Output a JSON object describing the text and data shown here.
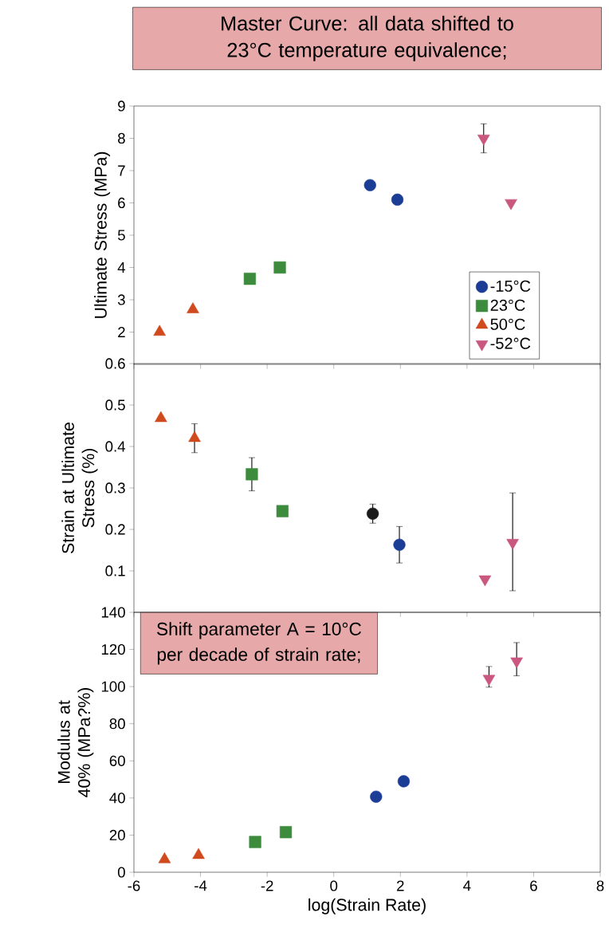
{
  "chart_data": [
    {
      "type": "scatter",
      "title": "Master Curve: all data shifted to 23°C temperature equivalence;",
      "ylabel": "Ultimate Stress (MPa)",
      "xlim": [
        -6,
        8
      ],
      "xticks": [
        -6,
        -4,
        -2,
        0,
        2,
        4,
        6,
        8
      ],
      "ylim": [
        1,
        9
      ],
      "yticks": [
        2,
        3,
        4,
        5,
        6,
        7,
        8,
        9
      ],
      "tick_labels": "y",
      "legend": "bottom right",
      "series": [
        {
          "name": "-15°C",
          "color": "#1c3d96",
          "marker": "circle",
          "x": [
            1.09,
            1.91
          ],
          "values": [
            6.55,
            6.1
          ]
        },
        {
          "name": "23°C",
          "color": "#3d8b3d",
          "marker": "square",
          "x": [
            -2.52,
            -1.62
          ],
          "values": [
            3.65,
            4.0
          ]
        },
        {
          "name": "50°C",
          "color": "#d04a1e",
          "marker": "triangle",
          "x": [
            -5.23,
            -4.23
          ],
          "values": [
            2.0,
            2.7
          ]
        },
        {
          "name": "-52°C",
          "color": "#c9577f",
          "marker": "triangle-down",
          "x": [
            4.5,
            5.32
          ],
          "values": [
            8.0,
            6.0
          ],
          "errors": [
            0.45,
            null
          ]
        }
      ]
    },
    {
      "type": "scatter",
      "ylabel": "Strain at Ultimate Stress (%)",
      "xlim": [
        -6,
        8
      ],
      "xticks": [
        -6,
        -4,
        -2,
        0,
        2,
        4,
        6,
        8
      ],
      "ylim": [
        0,
        0.6
      ],
      "yticks": [
        0.1,
        0.2,
        0.3,
        0.4,
        0.5,
        0.6
      ],
      "tick_labels": "y",
      "series": [
        {
          "colors": [
            "#1a1a1a",
            "#1c3d96"
          ],
          "marker": "circle",
          "x": [
            1.17,
            1.97
          ],
          "values": [
            0.238,
            0.163
          ],
          "errors": [
            0.023,
            0.044
          ]
        },
        {
          "color": "#3d8b3d",
          "marker": "square",
          "x": [
            -2.46,
            -1.54
          ],
          "values": [
            0.333,
            0.244
          ],
          "errors": [
            0.04,
            null
          ]
        },
        {
          "color": "#d04a1e",
          "marker": "triangle",
          "x": [
            -5.19,
            -4.18
          ],
          "values": [
            0.468,
            0.42
          ],
          "errors": [
            null,
            0.035
          ]
        },
        {
          "color": "#c9577f",
          "marker": "triangle-down",
          "x": [
            4.54,
            5.37
          ],
          "values": [
            0.08,
            0.168
          ],
          "errors": [
            null,
            [
              0.052,
              0.288
            ]
          ]
        }
      ]
    },
    {
      "type": "scatter",
      "xlabel": "log(Strain Rate)",
      "ylabel": "Modulus at 40% (MPa?%)",
      "xlim": [
        -6,
        8
      ],
      "xticks": [
        -6,
        -4,
        -2,
        0,
        2,
        4,
        6,
        8
      ],
      "ylim": [
        0,
        140
      ],
      "yticks": [
        0,
        20,
        40,
        60,
        80,
        100,
        120,
        140
      ],
      "annotations": [
        "Shift parameter A = 10°C per decade of strain rate;"
      ],
      "series": [
        {
          "color": "#1c3d96",
          "marker": "circle",
          "x": [
            1.27,
            2.1
          ],
          "values": [
            40.7,
            49
          ]
        },
        {
          "color": "#3d8b3d",
          "marker": "square",
          "x": [
            -2.36,
            -1.44
          ],
          "values": [
            16.3,
            21.6
          ]
        },
        {
          "color": "#d04a1e",
          "marker": "triangle",
          "x": [
            -5.08,
            -4.06
          ],
          "values": [
            6.9,
            9.2
          ]
        },
        {
          "color": "#c9577f",
          "marker": "triangle-down",
          "x": [
            4.66,
            5.49
          ],
          "values": [
            104.3,
            113.7
          ],
          "errors": [
            [
              99.7,
              110.8
            ],
            [
              105.8,
              123.7
            ]
          ]
        }
      ]
    }
  ]
}
